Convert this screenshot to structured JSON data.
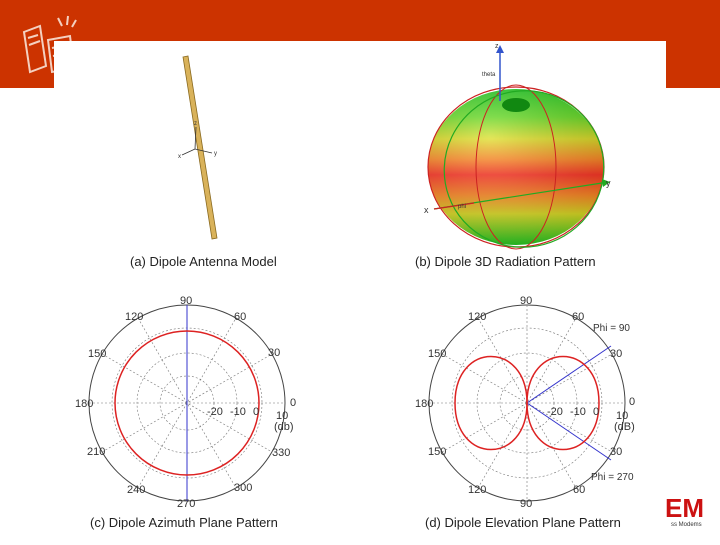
{
  "colors": {
    "header": "#cc3300",
    "pattern_red": "#dd2222",
    "axis_blue": "#3333cc",
    "rod": "#d9b25a"
  },
  "panels": {
    "a": {
      "caption": "(a) Dipole Antenna Model",
      "axis_labels": {
        "z": "z",
        "x": "x",
        "y": "y"
      }
    },
    "b": {
      "caption": "(b) Dipole 3D Radiation Pattern",
      "axis_labels": {
        "z": "z",
        "x": "x",
        "y": "y",
        "theta": "theta",
        "phi": "phi"
      }
    },
    "c": {
      "caption": "(c) Dipole Azimuth Plane Pattern",
      "angle_labels": {
        "a90": "90",
        "a60": "60",
        "a30": "30",
        "a0": "0",
        "a330": "330",
        "a300": "300",
        "a270": "270",
        "a240": "240",
        "a210": "210",
        "a180": "180",
        "a150": "150",
        "a120": "120"
      },
      "radial_labels": {
        "r1": "-20",
        "r2": "-10",
        "r3": "0",
        "r4": "10"
      },
      "unit": "(db)"
    },
    "d": {
      "caption": "(d) Dipole Elevation Plane Pattern",
      "angle_labels": {
        "top90": "90",
        "r60": "60",
        "r30": "30",
        "r0": "0",
        "rb30": "30",
        "rb60": "60",
        "bottom90": "90",
        "lb120": "120",
        "lb150": "150",
        "l180": "180",
        "l150": "150",
        "l120": "120"
      },
      "radial_labels": {
        "r1": "-20",
        "r2": "-10",
        "r3": "0",
        "r4": "10"
      },
      "unit": "(dB)",
      "phi_top": "Phi = 90",
      "phi_bottom": "Phi = 270"
    }
  },
  "logo": {
    "text": "EM",
    "subtext": "ss Modems"
  }
}
